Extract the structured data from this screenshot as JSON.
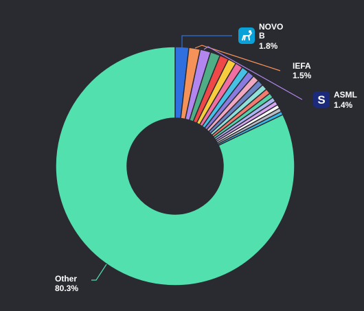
{
  "chart_data": {
    "type": "pie",
    "donut": true,
    "title": "",
    "slices": [
      {
        "label": "NOVO B",
        "value": 1.8,
        "color": "#2f6fe0"
      },
      {
        "label": "IEFA",
        "value": 1.5,
        "color": "#f5925a"
      },
      {
        "label": "ASML",
        "value": 1.4,
        "color": "#b286ee"
      },
      {
        "label": "",
        "value": 1.3,
        "color": "#4fae86"
      },
      {
        "label": "",
        "value": 1.2,
        "color": "#ef4848"
      },
      {
        "label": "",
        "value": 1.1,
        "color": "#f7cc3d"
      },
      {
        "label": "",
        "value": 1.0,
        "color": "#ef6fa0"
      },
      {
        "label": "",
        "value": 0.95,
        "color": "#47c0e6"
      },
      {
        "label": "",
        "value": 0.9,
        "color": "#8a7be0"
      },
      {
        "label": "",
        "value": 0.85,
        "color": "#f0a8c0"
      },
      {
        "label": "",
        "value": 0.8,
        "color": "#6b82c4"
      },
      {
        "label": "",
        "value": 0.75,
        "color": "#8fe0d8"
      },
      {
        "label": "",
        "value": 0.7,
        "color": "#f27a6e"
      },
      {
        "label": "",
        "value": 0.65,
        "color": "#57cfa8"
      },
      {
        "label": "",
        "value": 0.6,
        "color": "#a9b6f2"
      },
      {
        "label": "",
        "value": 0.55,
        "color": "#d8a6f0"
      },
      {
        "label": "",
        "value": 0.5,
        "color": "#ffffff"
      },
      {
        "label": "",
        "value": 0.5,
        "color": "#b8bcc4"
      },
      {
        "label": "",
        "value": 0.45,
        "color": "#36b9e8"
      },
      {
        "label": "Other",
        "value": 80.3,
        "color": "#52e0ae"
      }
    ],
    "callouts": [
      {
        "lines": [
          "NOVO",
          "B",
          "1.8%"
        ],
        "slice": 0,
        "line_color": "#2f6fe0",
        "logo": "novo-nordisk-logo-icon",
        "logo_bg": "#0aa0d8"
      },
      {
        "lines": [
          "IEFA",
          "1.5%"
        ],
        "slice": 1,
        "line_color": "#f5925a"
      },
      {
        "lines": [
          "ASML",
          "1.4%"
        ],
        "slice": 2,
        "line_color": "#b286ee",
        "logo": "asml-logo-icon",
        "logo_bg": "#1b2a7a",
        "logo_text": "S"
      },
      {
        "lines": [
          "Other",
          "80.3%"
        ],
        "slice": 19,
        "line_color": "#52e0ae"
      }
    ]
  }
}
